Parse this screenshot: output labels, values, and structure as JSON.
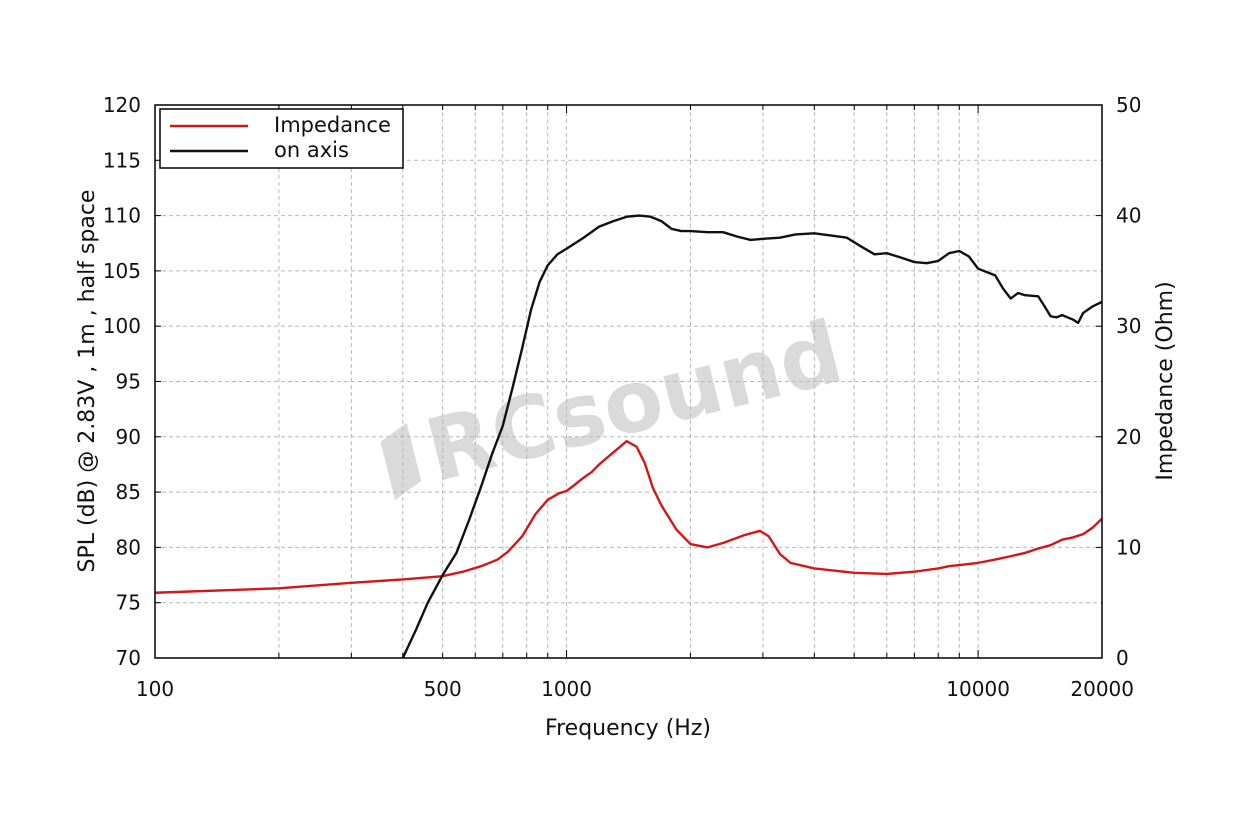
{
  "chart_data": {
    "type": "line",
    "xlabel": "Frequency (Hz)",
    "ylabel": "SPL (dB) @ 2.83V , 1m , half space",
    "y2label": "Impedance (Ohm)",
    "x_scale": "log",
    "xlim": [
      100,
      20000
    ],
    "ylim": [
      70,
      120
    ],
    "y2lim": [
      0,
      50
    ],
    "x_tick_labels": [
      "100",
      "500",
      "1000",
      "10000",
      "20000"
    ],
    "y_tick_labels": [
      "70",
      "75",
      "80",
      "85",
      "90",
      "95",
      "100",
      "105",
      "110",
      "115",
      "120"
    ],
    "y2_tick_labels": [
      "0",
      "10",
      "20",
      "30",
      "40",
      "50"
    ],
    "grid": true,
    "legend_position": "top-left",
    "watermark": "RCsound",
    "series": [
      {
        "name": "Impedance",
        "color": "#d01818",
        "axis": "right",
        "x": [
          100,
          200,
          300,
          400,
          500,
          560,
          620,
          680,
          720,
          780,
          840,
          900,
          960,
          1000,
          1050,
          1100,
          1150,
          1200,
          1300,
          1400,
          1480,
          1550,
          1620,
          1700,
          1850,
          2000,
          2200,
          2400,
          2700,
          2950,
          3100,
          3300,
          3500,
          4000,
          5000,
          6000,
          7000,
          8000,
          8500,
          9000,
          10000,
          11000,
          12000,
          13000,
          14000,
          15000,
          16000,
          17000,
          18000,
          19000,
          20000
        ],
        "values": [
          5.9,
          6.3,
          6.8,
          7.1,
          7.4,
          7.8,
          8.3,
          8.9,
          9.6,
          11.0,
          13.0,
          14.3,
          14.9,
          15.1,
          15.7,
          16.3,
          16.8,
          17.5,
          18.6,
          19.6,
          19.1,
          17.6,
          15.4,
          13.8,
          11.6,
          10.3,
          10.0,
          10.4,
          11.1,
          11.5,
          11.0,
          9.4,
          8.6,
          8.1,
          7.7,
          7.6,
          7.8,
          8.1,
          8.3,
          8.4,
          8.6,
          8.9,
          9.2,
          9.5,
          9.9,
          10.2,
          10.7,
          10.9,
          11.2,
          11.8,
          12.6
        ]
      },
      {
        "name": "on axis",
        "color": "#111111",
        "axis": "left",
        "x": [
          400,
          430,
          460,
          500,
          540,
          580,
          620,
          660,
          700,
          740,
          780,
          820,
          860,
          900,
          950,
          1000,
          1100,
          1200,
          1300,
          1400,
          1500,
          1600,
          1700,
          1800,
          1900,
          2000,
          2200,
          2400,
          2600,
          2800,
          3000,
          3300,
          3600,
          4000,
          4400,
          4800,
          5200,
          5600,
          6000,
          6500,
          7000,
          7500,
          8000,
          8500,
          9000,
          9500,
          10000,
          11000,
          11500,
          12000,
          12500,
          13000,
          14000,
          14500,
          15000,
          15500,
          16000,
          17000,
          17500,
          18000,
          19000,
          20000
        ],
        "values": [
          70,
          72.5,
          75,
          77.5,
          79.5,
          82.5,
          85.5,
          88.5,
          91,
          94.5,
          98,
          101.5,
          104,
          105.5,
          106.5,
          107,
          108,
          109,
          109.5,
          109.9,
          110,
          109.9,
          109.5,
          108.8,
          108.6,
          108.6,
          108.5,
          108.5,
          108.1,
          107.8,
          107.9,
          108,
          108.3,
          108.4,
          108.2,
          108,
          107.2,
          106.5,
          106.6,
          106.2,
          105.8,
          105.7,
          105.9,
          106.6,
          106.8,
          106.3,
          105.2,
          104.6,
          103.4,
          102.5,
          103.0,
          102.8,
          102.7,
          101.8,
          100.9,
          100.8,
          101.0,
          100.6,
          100.3,
          101.2,
          101.8,
          102.2
        ]
      }
    ]
  }
}
